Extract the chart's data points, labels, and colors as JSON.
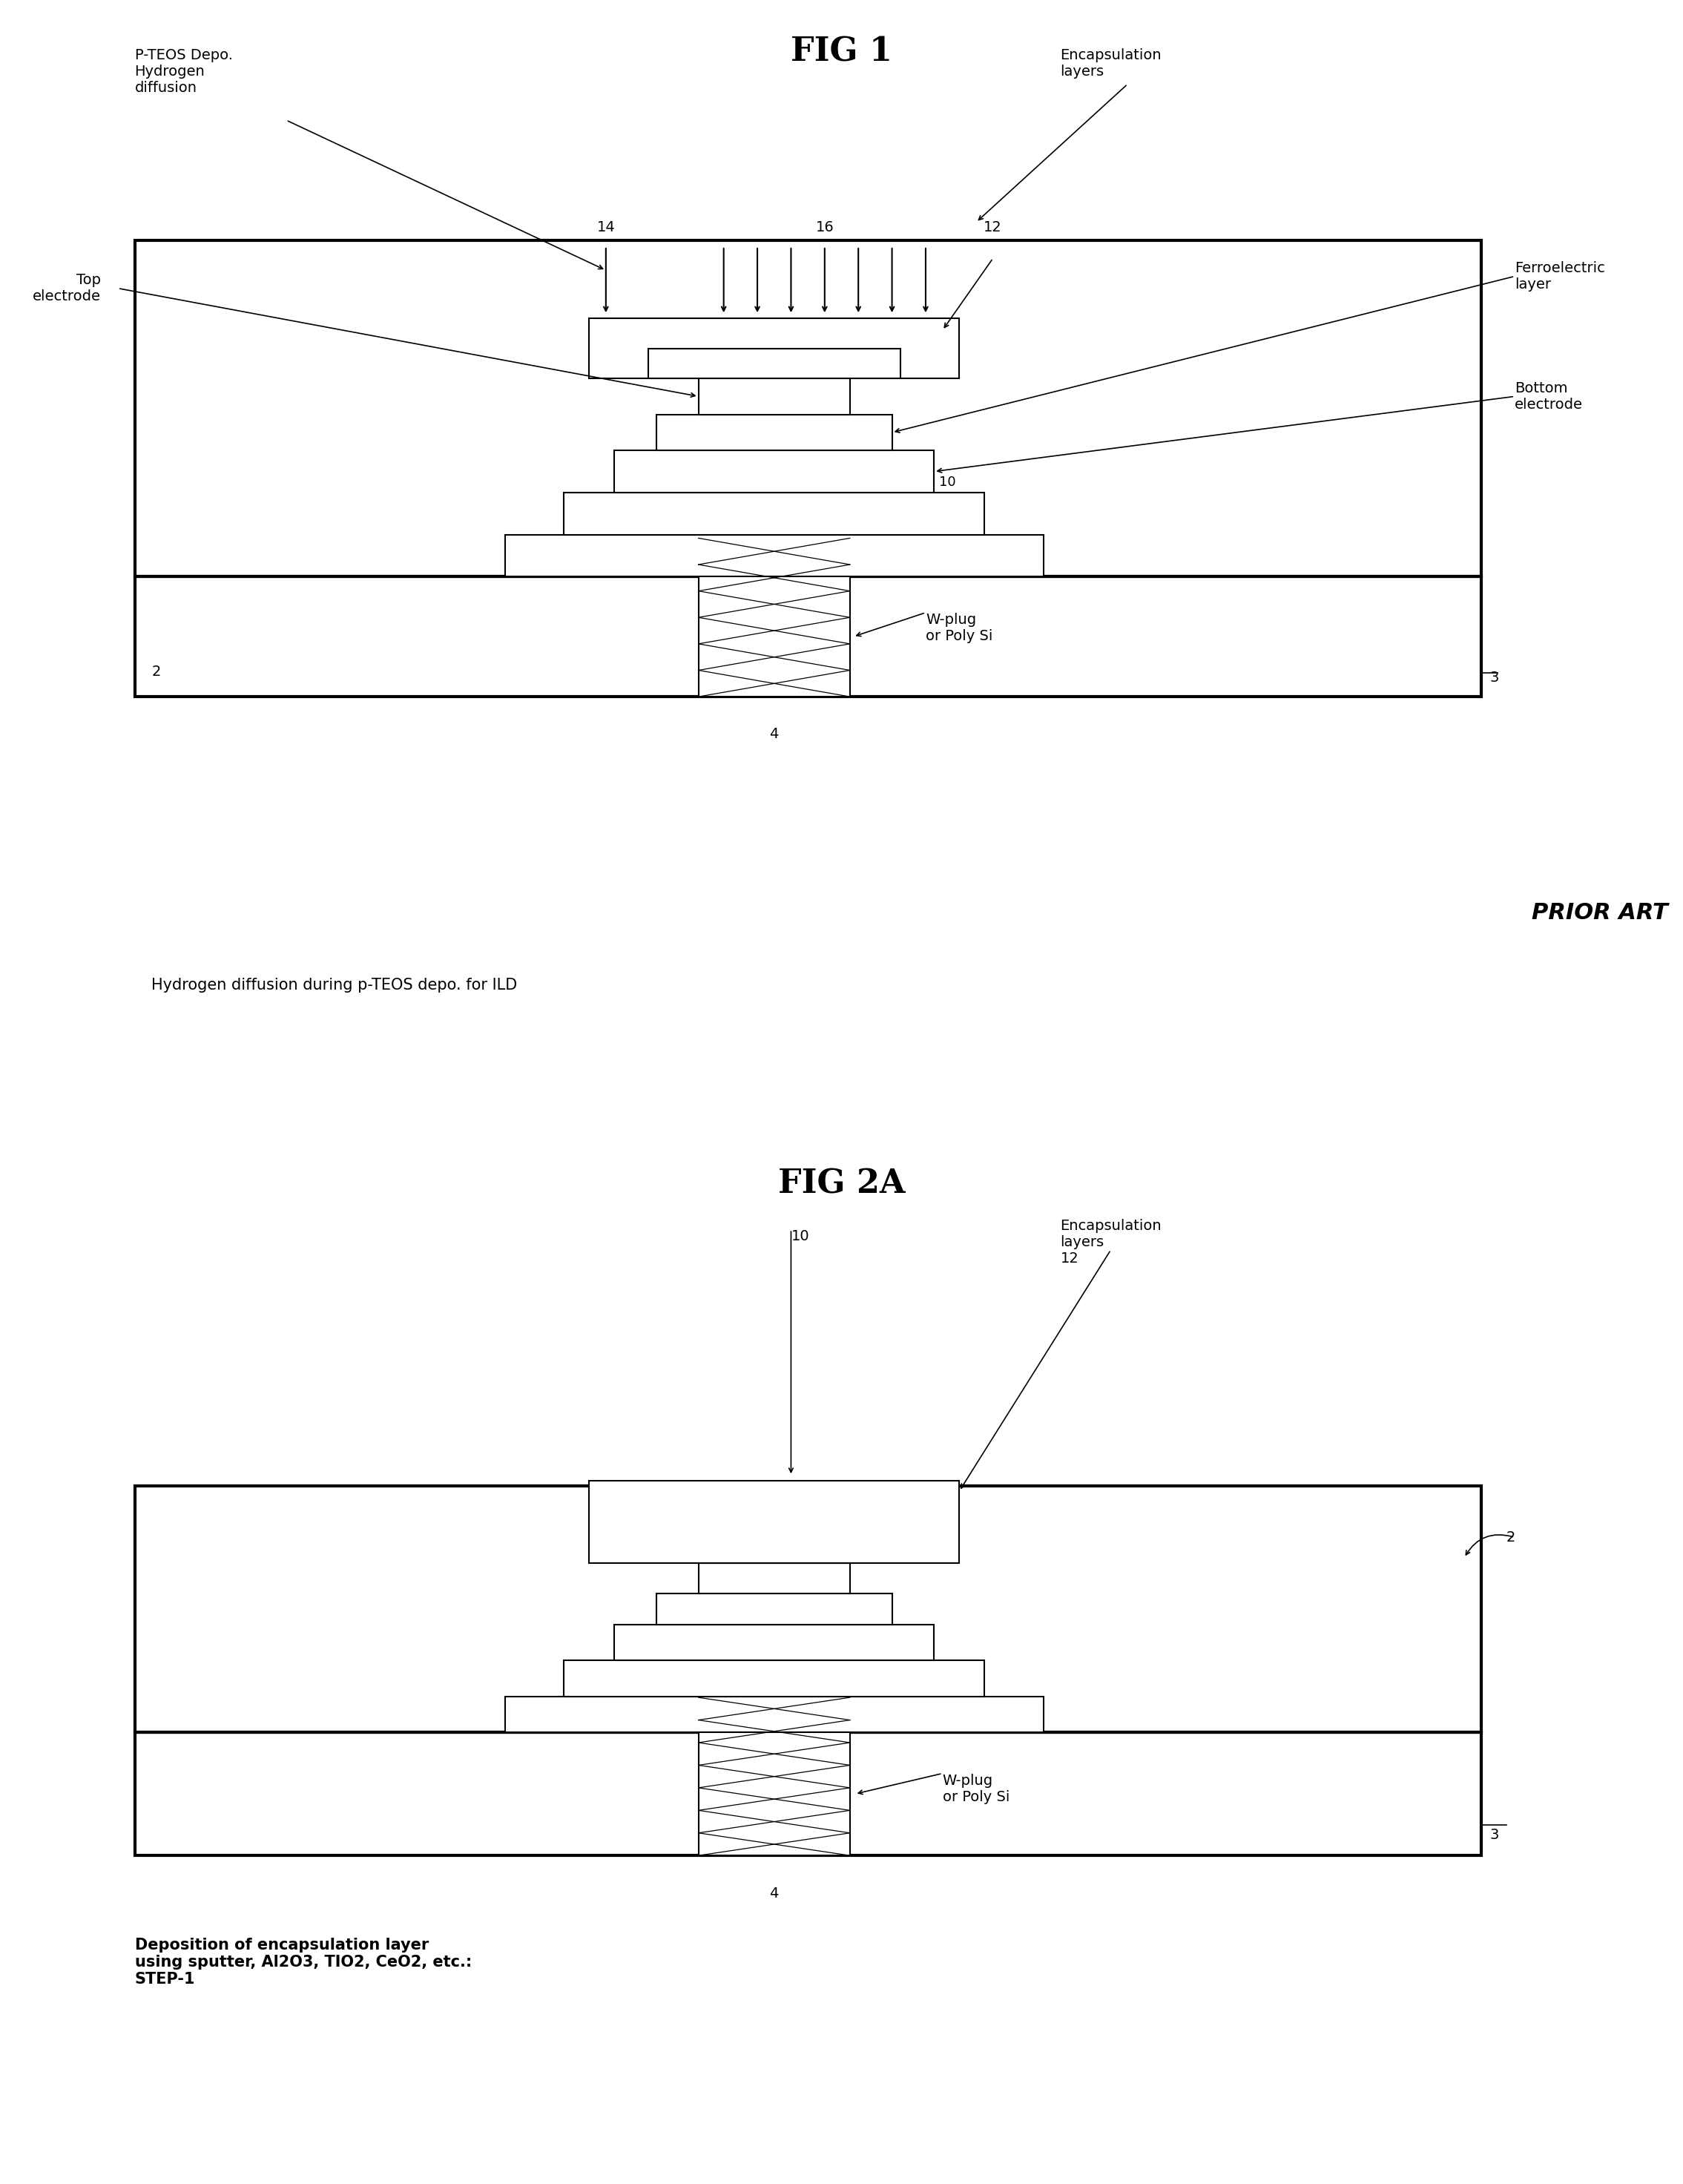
{
  "bg_color": "#ffffff",
  "fig_width": 22.69,
  "fig_height": 29.44,
  "fig1_title": "FIG 1",
  "fig2a_title": "FIG 2A",
  "prior_art_text": "PRIOR ART",
  "fig1_caption": "Hydrogen diffusion during p-TEOS depo. for ILD",
  "fig2a_caption": "Deposition of encapsulation layer\nusing sputter, Al2O3, TIO2, CeO2, etc.:\nSTEP-1",
  "lw_thick": 3.0,
  "lw_thin": 1.5,
  "lw_border": 2.5,
  "fontsize_title": 32,
  "fontsize_label": 14,
  "fontsize_num": 14,
  "fontsize_caption": 15,
  "fontsize_prior": 22
}
